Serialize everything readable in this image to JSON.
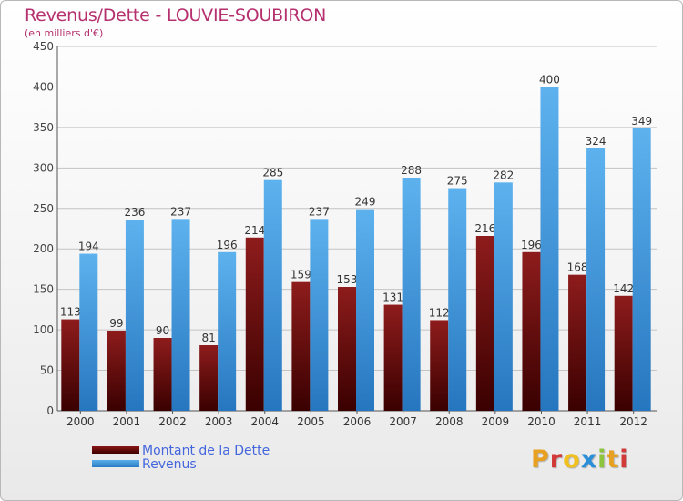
{
  "title": "Revenus/Dette - LOUVIE-SOUBIRON",
  "subtitle": "(en milliers d'€)",
  "colors": {
    "dette": "#6b0a0a",
    "revenus": "#3d8fd6",
    "title": "#b5306e",
    "legend_text": "#4466dd"
  },
  "legend": [
    {
      "label": "Montant de la Dette",
      "color": "#6b0a0a"
    },
    {
      "label": "Revenus",
      "color": "#3d8fd6"
    }
  ],
  "logo": {
    "text": "Proxiti"
  },
  "chart_data": {
    "type": "bar",
    "title": "Revenus/Dette - LOUVIE-SOUBIRON",
    "subtitle": "(en milliers d'€)",
    "xlabel": "",
    "ylabel": "",
    "ylim": [
      0,
      450
    ],
    "yticks": [
      0,
      50,
      100,
      150,
      200,
      250,
      300,
      350,
      400,
      450
    ],
    "grid": true,
    "legend_position": "bottom-left",
    "categories": [
      "2000",
      "2001",
      "2002",
      "2003",
      "2004",
      "2005",
      "2006",
      "2007",
      "2008",
      "2009",
      "2010",
      "2011",
      "2012"
    ],
    "series": [
      {
        "name": "Montant de la Dette",
        "values": [
          113,
          99,
          90,
          81,
          214,
          159,
          153,
          131,
          112,
          216,
          196,
          168,
          142
        ]
      },
      {
        "name": "Revenus",
        "values": [
          194,
          236,
          237,
          196,
          285,
          237,
          249,
          288,
          275,
          282,
          400,
          324,
          349
        ]
      }
    ]
  }
}
